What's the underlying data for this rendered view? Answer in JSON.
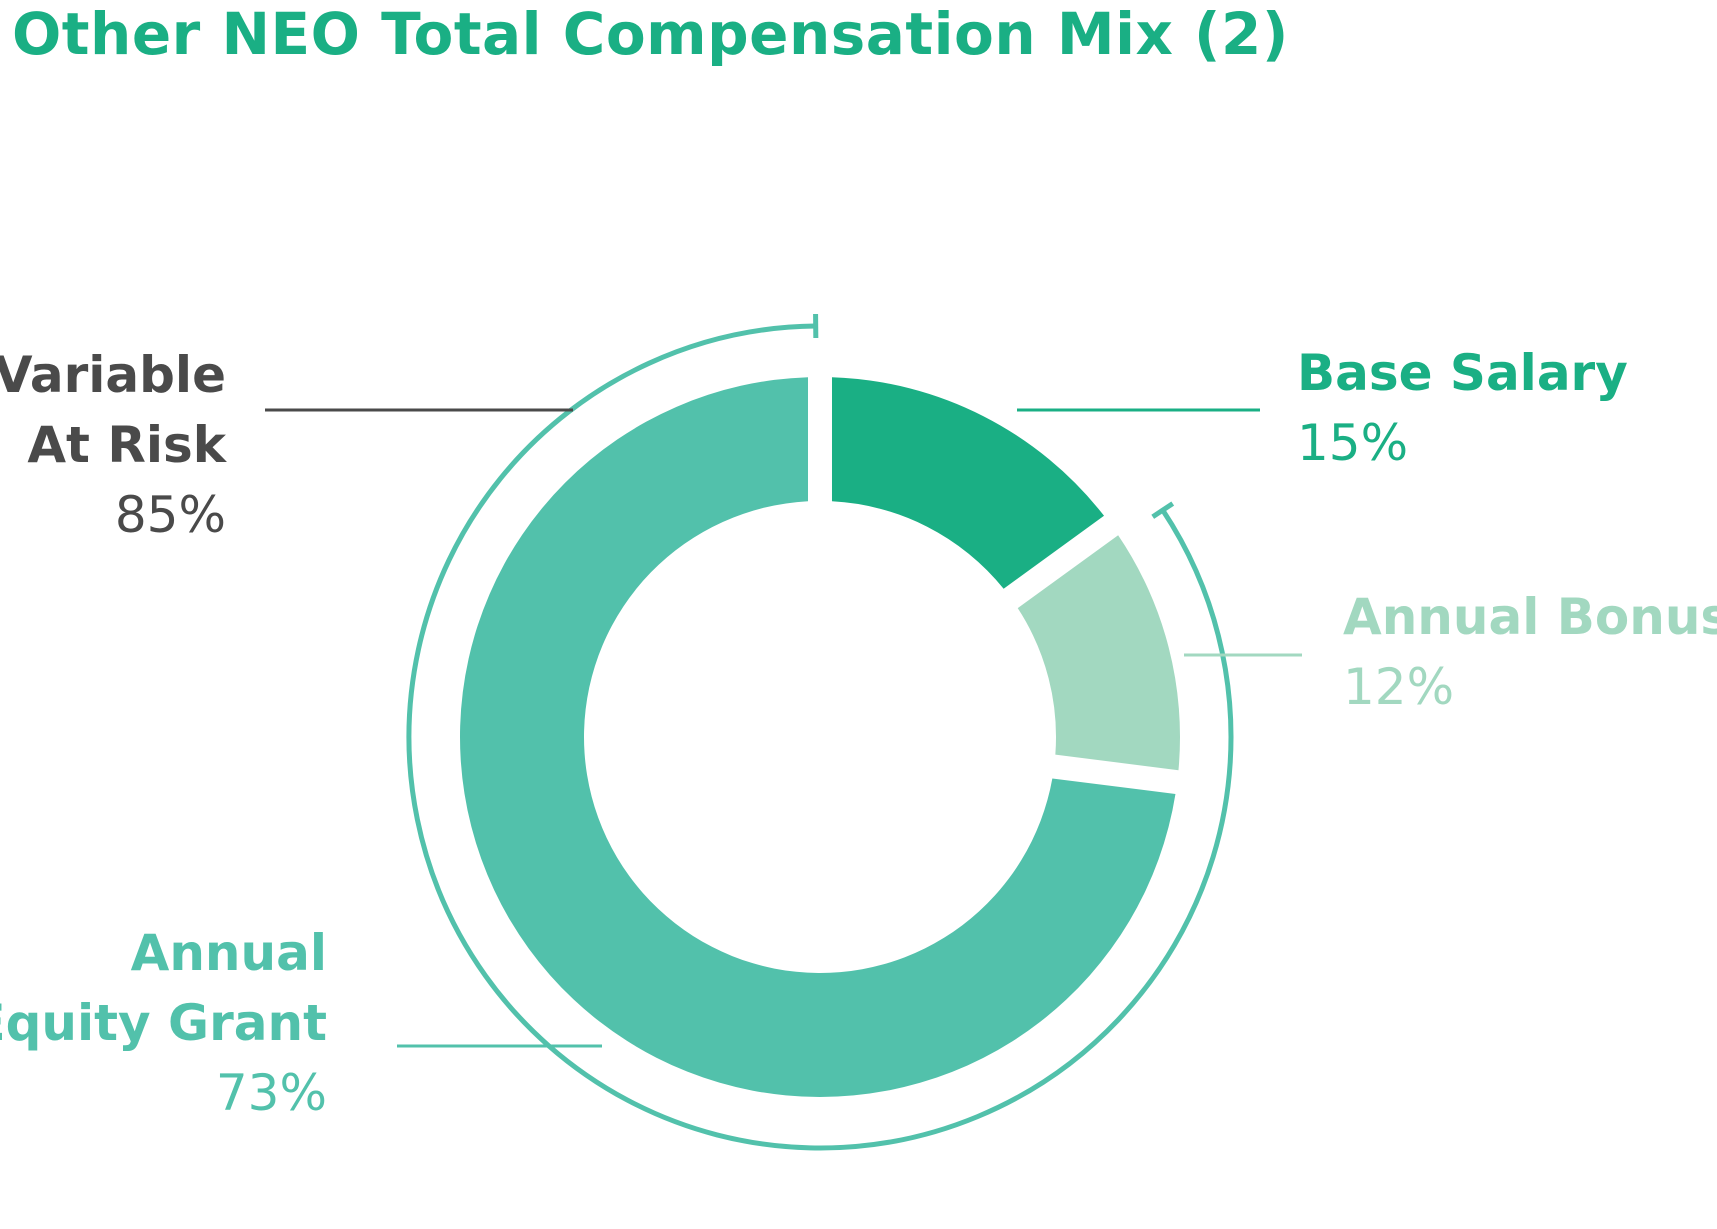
{
  "title": "Other NEO Total Compensation Mix (2)",
  "chart_data": {
    "type": "pie",
    "variant": "donut",
    "categories": [
      "Base Salary",
      "Annual Bonus",
      "Annual Equity Grant"
    ],
    "values": [
      15,
      12,
      73
    ],
    "colors": [
      "#1aaf84",
      "#a2d8c0",
      "#52c1ab"
    ],
    "bracket": {
      "name_line1": "Variable",
      "name_line2": "At Risk",
      "value": 85,
      "value_label": "85%",
      "covers": [
        "Annual Bonus",
        "Annual Equity Grant"
      ],
      "color": "#52c1ab"
    },
    "labels": {
      "variable": {
        "line1": "Variable",
        "line2": "At Risk",
        "pct": "85%",
        "color": "#4a4a4a"
      },
      "equity": {
        "line1": "Annual",
        "line2": "Equity Grant",
        "pct": "73%",
        "color": "#52c1ab"
      },
      "base": {
        "line1": "Base Salary",
        "pct": "15%",
        "color": "#1aaf84"
      },
      "bonus": {
        "line1": "Annual Bonus",
        "pct": "12%",
        "color": "#a2d8c0"
      }
    }
  }
}
